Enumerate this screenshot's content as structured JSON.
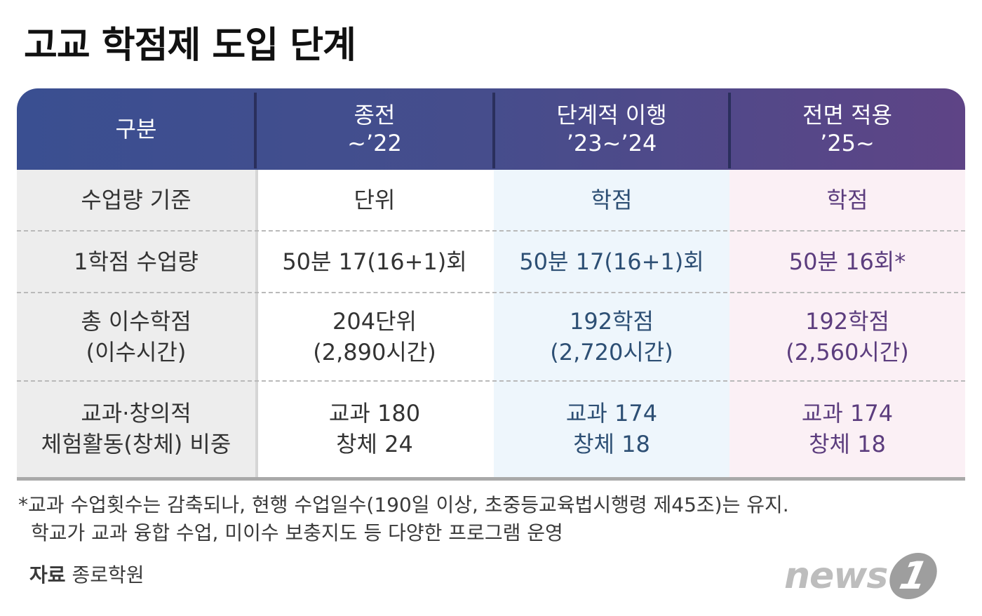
{
  "title": "고교 학점제 도입 단계",
  "header": {
    "col0": "구분",
    "col1": {
      "line1": "종전",
      "line2": "~’22"
    },
    "col2": {
      "line1": "단계적 이행",
      "line2": "’23~’24"
    },
    "col3": {
      "line1": "전면 적용",
      "line2": "’25~"
    }
  },
  "rows": [
    {
      "label": {
        "line1": "수업량 기준",
        "line2": ""
      },
      "col1": {
        "line1": "단위",
        "line2": ""
      },
      "col2": {
        "line1": "학점",
        "line2": ""
      },
      "col3": {
        "line1": "학점",
        "line2": ""
      }
    },
    {
      "label": {
        "line1": "1학점 수업량",
        "line2": ""
      },
      "col1": {
        "line1": "50분 17(16+1)회",
        "line2": ""
      },
      "col2": {
        "line1": "50분 17(16+1)회",
        "line2": ""
      },
      "col3": {
        "line1": "50분 16회*",
        "line2": ""
      }
    },
    {
      "label": {
        "line1": "총 이수학점",
        "line2": "(이수시간)"
      },
      "col1": {
        "line1": "204단위",
        "line2": "(2,890시간)"
      },
      "col2": {
        "line1": "192학점",
        "line2": "(2,720시간)"
      },
      "col3": {
        "line1": "192학점",
        "line2": "(2,560시간)"
      }
    },
    {
      "label": {
        "line1": "교과·창의적",
        "line2": "체험활동(창체) 비중"
      },
      "col1": {
        "line1": "교과 180",
        "line2": "창체 24"
      },
      "col2": {
        "line1": "교과 174",
        "line2": "창체 18"
      },
      "col3": {
        "line1": "교과 174",
        "line2": "창체 18"
      }
    }
  ],
  "footnote": {
    "line1": "*교과 수업횟수는 감축되나, 현행 수업일수(190일 이상, 초중등교육법시행령 제45조)는 유지.",
    "line2": "학교가 교과 융합 수업, 미이수 보충지도 등 다양한 프로그램 운영"
  },
  "source": {
    "label": "자료",
    "value": "종로학원"
  },
  "logo": {
    "text": "news",
    "mark": "1"
  },
  "colors": {
    "header_start": "#3a4f91",
    "header_end": "#5e4486",
    "col2_text": "#2d4f74",
    "col3_text": "#5c3d7e",
    "col2_bg": "#eef6fc",
    "col3_bg": "#fbf0f5",
    "label_bg": "#ededed"
  }
}
